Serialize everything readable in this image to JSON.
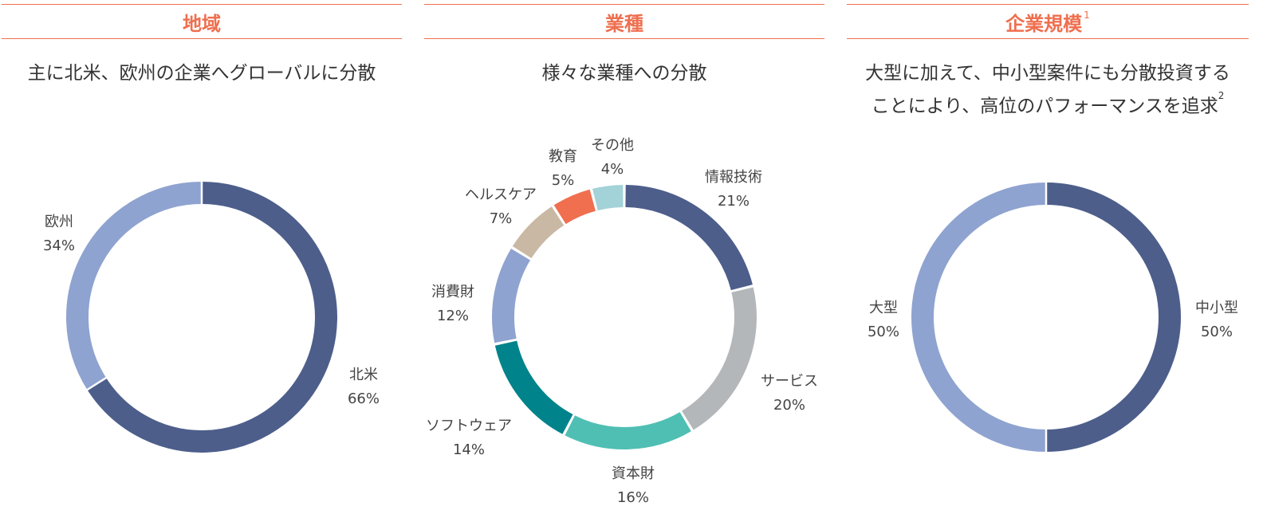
{
  "panels": [
    {
      "heading": "地域",
      "heading_sup": "",
      "subtitle_lines": [
        "主に北米、欧州の企業へグローバルに分散"
      ],
      "subtitle_sup": ""
    },
    {
      "heading": "業種",
      "heading_sup": "",
      "subtitle_lines": [
        "様々な業種への分散"
      ],
      "subtitle_sup": ""
    },
    {
      "heading": "企業規模",
      "heading_sup": "1",
      "subtitle_lines": [
        "大型に加えて、中小型案件にも分散投資する",
        "ことにより、高位のパフォーマンスを追求"
      ],
      "subtitle_sup": "2"
    }
  ],
  "colors": {
    "accent": "#ef6f4f",
    "text": "#333333"
  },
  "chart_data": [
    {
      "type": "pie",
      "title": "地域",
      "categories": [
        "北米",
        "欧州"
      ],
      "values": [
        66,
        34
      ],
      "value_labels": [
        "66%",
        "34%"
      ],
      "colors": [
        "#4d5e8b",
        "#8fa3d0"
      ]
    },
    {
      "type": "pie",
      "title": "業種",
      "categories": [
        "情報技術",
        "サービス",
        "資本財",
        "ソフトウェア",
        "消費財",
        "ヘルスケア",
        "教育",
        "その他"
      ],
      "values": [
        21,
        20,
        16,
        14,
        12,
        7,
        5,
        4
      ],
      "value_labels": [
        "21%",
        "20%",
        "16%",
        "14%",
        "12%",
        "7%",
        "5%",
        "4%"
      ],
      "colors": [
        "#4d5e8b",
        "#b4b7ba",
        "#4fbfb3",
        "#00838a",
        "#8fa3d0",
        "#c9b8a3",
        "#ef6f4f",
        "#a3d2d8"
      ]
    },
    {
      "type": "pie",
      "title": "企業規模",
      "categories": [
        "中小型",
        "大型"
      ],
      "values": [
        50,
        50
      ],
      "value_labels": [
        "50%",
        "50%"
      ],
      "colors": [
        "#4d5e8b",
        "#8fa3d0"
      ]
    }
  ]
}
